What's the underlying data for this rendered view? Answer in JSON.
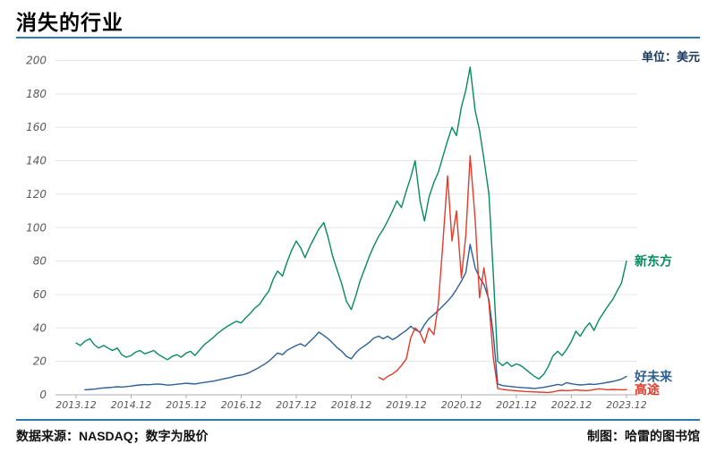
{
  "page": {
    "title": "消失的行业",
    "unit_label": "单位：美元",
    "source_note": "数据来源：NASDAQ；数字为股价",
    "credit_note": "制图：哈雷的图书馆",
    "accent_color": "#2b7cb5"
  },
  "chart_data": {
    "type": "line",
    "title": "消失的行业",
    "unit": "美元",
    "grid": true,
    "legend_position": "line-end",
    "y_axis": {
      "min": 0,
      "max": 200,
      "step": 20,
      "tick_labels": [
        "0",
        "20",
        "40",
        "60",
        "80",
        "100",
        "120",
        "140",
        "160",
        "180",
        "200"
      ]
    },
    "x_axis": {
      "ticks": [
        {
          "year": 2013.92,
          "label": "2013.12"
        },
        {
          "year": 2014.92,
          "label": "2014.12"
        },
        {
          "year": 2015.92,
          "label": "2015.12"
        },
        {
          "year": 2016.92,
          "label": "2016.12"
        },
        {
          "year": 2017.92,
          "label": "2017.12"
        },
        {
          "year": 2018.92,
          "label": "2018.12"
        },
        {
          "year": 2019.92,
          "label": "2019.12"
        },
        {
          "year": 2020.92,
          "label": "2020.12"
        },
        {
          "year": 2021.92,
          "label": "2021.12"
        },
        {
          "year": 2022.92,
          "label": "2022.12"
        },
        {
          "year": 2023.92,
          "label": "2023.12"
        }
      ]
    },
    "series": [
      {
        "id": "xindongfang",
        "name": "新东方",
        "color": "#068a60",
        "points": [
          [
            2013.92,
            31
          ],
          [
            2014,
            29.5
          ],
          [
            2014.08,
            32
          ],
          [
            2014.17,
            33.5
          ],
          [
            2014.25,
            30
          ],
          [
            2014.33,
            28
          ],
          [
            2014.42,
            29.5
          ],
          [
            2014.5,
            28
          ],
          [
            2014.58,
            26.5
          ],
          [
            2014.67,
            28
          ],
          [
            2014.75,
            24
          ],
          [
            2014.83,
            22.5
          ],
          [
            2014.92,
            23.5
          ],
          [
            2015,
            25.5
          ],
          [
            2015.08,
            26.5
          ],
          [
            2015.17,
            24.5
          ],
          [
            2015.25,
            25.5
          ],
          [
            2015.33,
            26.5
          ],
          [
            2015.42,
            24
          ],
          [
            2015.5,
            22.5
          ],
          [
            2015.58,
            21
          ],
          [
            2015.67,
            23
          ],
          [
            2015.75,
            24
          ],
          [
            2015.83,
            22.5
          ],
          [
            2015.92,
            25
          ],
          [
            2016,
            26
          ],
          [
            2016.08,
            23.5
          ],
          [
            2016.17,
            27
          ],
          [
            2016.25,
            30
          ],
          [
            2016.33,
            32
          ],
          [
            2016.42,
            34.5
          ],
          [
            2016.5,
            37
          ],
          [
            2016.58,
            39
          ],
          [
            2016.67,
            41
          ],
          [
            2016.75,
            42.5
          ],
          [
            2016.83,
            44
          ],
          [
            2016.92,
            43
          ],
          [
            2017,
            46
          ],
          [
            2017.08,
            48.5
          ],
          [
            2017.17,
            52
          ],
          [
            2017.25,
            54
          ],
          [
            2017.33,
            58
          ],
          [
            2017.42,
            62
          ],
          [
            2017.5,
            69
          ],
          [
            2017.58,
            74
          ],
          [
            2017.67,
            71
          ],
          [
            2017.75,
            79
          ],
          [
            2017.83,
            86
          ],
          [
            2017.92,
            92
          ],
          [
            2018,
            88
          ],
          [
            2018.08,
            82
          ],
          [
            2018.17,
            89
          ],
          [
            2018.25,
            94
          ],
          [
            2018.33,
            99
          ],
          [
            2018.42,
            103
          ],
          [
            2018.5,
            94
          ],
          [
            2018.58,
            83
          ],
          [
            2018.67,
            74
          ],
          [
            2018.75,
            66
          ],
          [
            2018.83,
            56
          ],
          [
            2018.92,
            51
          ],
          [
            2019,
            59
          ],
          [
            2019.08,
            68
          ],
          [
            2019.17,
            76
          ],
          [
            2019.25,
            83
          ],
          [
            2019.33,
            89
          ],
          [
            2019.42,
            95
          ],
          [
            2019.5,
            99
          ],
          [
            2019.58,
            104
          ],
          [
            2019.67,
            110
          ],
          [
            2019.75,
            116
          ],
          [
            2019.83,
            112
          ],
          [
            2019.92,
            122
          ],
          [
            2020,
            130
          ],
          [
            2020.08,
            140
          ],
          [
            2020.17,
            116
          ],
          [
            2020.25,
            104
          ],
          [
            2020.33,
            118
          ],
          [
            2020.42,
            127
          ],
          [
            2020.5,
            133
          ],
          [
            2020.58,
            142
          ],
          [
            2020.67,
            152
          ],
          [
            2020.75,
            160
          ],
          [
            2020.83,
            155
          ],
          [
            2020.92,
            172
          ],
          [
            2021,
            182
          ],
          [
            2021.08,
            196
          ],
          [
            2021.17,
            170
          ],
          [
            2021.25,
            158
          ],
          [
            2021.33,
            141
          ],
          [
            2021.42,
            120
          ],
          [
            2021.5,
            72
          ],
          [
            2021.58,
            20
          ],
          [
            2021.67,
            17.5
          ],
          [
            2021.75,
            19.5
          ],
          [
            2021.83,
            17
          ],
          [
            2021.92,
            18.5
          ],
          [
            2022,
            17.5
          ],
          [
            2022.08,
            15.5
          ],
          [
            2022.17,
            13
          ],
          [
            2022.25,
            11
          ],
          [
            2022.33,
            9.5
          ],
          [
            2022.42,
            12.5
          ],
          [
            2022.5,
            17
          ],
          [
            2022.58,
            23
          ],
          [
            2022.67,
            26
          ],
          [
            2022.75,
            23.5
          ],
          [
            2022.83,
            27
          ],
          [
            2022.92,
            32
          ],
          [
            2023,
            38
          ],
          [
            2023.08,
            35
          ],
          [
            2023.17,
            40
          ],
          [
            2023.25,
            43
          ],
          [
            2023.33,
            38.5
          ],
          [
            2023.42,
            45
          ],
          [
            2023.5,
            49
          ],
          [
            2023.58,
            53
          ],
          [
            2023.67,
            57
          ],
          [
            2023.75,
            62
          ],
          [
            2023.83,
            67
          ],
          [
            2023.92,
            80
          ]
        ]
      },
      {
        "id": "haoweilai",
        "name": "好未来",
        "color": "#2d5f96",
        "points": [
          [
            2014.08,
            3
          ],
          [
            2014.17,
            3.2
          ],
          [
            2014.25,
            3.4
          ],
          [
            2014.33,
            3.8
          ],
          [
            2014.42,
            4.1
          ],
          [
            2014.5,
            4.3
          ],
          [
            2014.58,
            4.5
          ],
          [
            2014.67,
            4.8
          ],
          [
            2014.75,
            4.6
          ],
          [
            2014.83,
            4.9
          ],
          [
            2014.92,
            5.2
          ],
          [
            2015,
            5.6
          ],
          [
            2015.08,
            5.9
          ],
          [
            2015.17,
            6.1
          ],
          [
            2015.25,
            6.0
          ],
          [
            2015.33,
            6.3
          ],
          [
            2015.42,
            6.5
          ],
          [
            2015.5,
            6.2
          ],
          [
            2015.58,
            5.8
          ],
          [
            2015.67,
            6.0
          ],
          [
            2015.75,
            6.3
          ],
          [
            2015.83,
            6.6
          ],
          [
            2015.92,
            6.9
          ],
          [
            2016,
            6.7
          ],
          [
            2016.08,
            6.5
          ],
          [
            2016.17,
            7.0
          ],
          [
            2016.25,
            7.4
          ],
          [
            2016.33,
            7.8
          ],
          [
            2016.42,
            8.2
          ],
          [
            2016.5,
            8.8
          ],
          [
            2016.58,
            9.4
          ],
          [
            2016.67,
            10.0
          ],
          [
            2016.75,
            10.6
          ],
          [
            2016.83,
            11.4
          ],
          [
            2016.92,
            11.8
          ],
          [
            2017,
            12.4
          ],
          [
            2017.08,
            13.5
          ],
          [
            2017.17,
            15
          ],
          [
            2017.25,
            16.5
          ],
          [
            2017.33,
            18
          ],
          [
            2017.42,
            20
          ],
          [
            2017.5,
            22.5
          ],
          [
            2017.58,
            25
          ],
          [
            2017.67,
            24
          ],
          [
            2017.75,
            26.5
          ],
          [
            2017.83,
            28
          ],
          [
            2017.92,
            29.5
          ],
          [
            2018,
            30.5
          ],
          [
            2018.08,
            29
          ],
          [
            2018.17,
            32
          ],
          [
            2018.25,
            34.5
          ],
          [
            2018.33,
            37.5
          ],
          [
            2018.42,
            35.5
          ],
          [
            2018.5,
            33.5
          ],
          [
            2018.58,
            31
          ],
          [
            2018.67,
            28
          ],
          [
            2018.75,
            26
          ],
          [
            2018.83,
            23
          ],
          [
            2018.92,
            21.5
          ],
          [
            2019,
            25
          ],
          [
            2019.08,
            27.5
          ],
          [
            2019.17,
            29.5
          ],
          [
            2019.25,
            31.5
          ],
          [
            2019.33,
            34
          ],
          [
            2019.42,
            35
          ],
          [
            2019.5,
            33.5
          ],
          [
            2019.58,
            35
          ],
          [
            2019.67,
            33
          ],
          [
            2019.75,
            34.5
          ],
          [
            2019.83,
            36.5
          ],
          [
            2019.92,
            38.5
          ],
          [
            2020,
            41
          ],
          [
            2020.08,
            39
          ],
          [
            2020.17,
            37.5
          ],
          [
            2020.25,
            42
          ],
          [
            2020.33,
            45.5
          ],
          [
            2020.42,
            48
          ],
          [
            2020.5,
            50.5
          ],
          [
            2020.58,
            53
          ],
          [
            2020.67,
            56
          ],
          [
            2020.75,
            59
          ],
          [
            2020.83,
            63
          ],
          [
            2020.92,
            68
          ],
          [
            2021,
            73
          ],
          [
            2021.08,
            90
          ],
          [
            2021.17,
            76
          ],
          [
            2021.25,
            70
          ],
          [
            2021.33,
            66
          ],
          [
            2021.42,
            57
          ],
          [
            2021.5,
            36
          ],
          [
            2021.58,
            6.5
          ],
          [
            2021.67,
            5.5
          ],
          [
            2021.75,
            5.2
          ],
          [
            2021.83,
            4.9
          ],
          [
            2021.92,
            4.6
          ],
          [
            2022,
            4.4
          ],
          [
            2022.08,
            4.2
          ],
          [
            2022.17,
            4.0
          ],
          [
            2022.25,
            3.8
          ],
          [
            2022.33,
            4.1
          ],
          [
            2022.42,
            4.5
          ],
          [
            2022.5,
            5.0
          ],
          [
            2022.58,
            5.5
          ],
          [
            2022.67,
            6.2
          ],
          [
            2022.75,
            5.8
          ],
          [
            2022.83,
            7.3
          ],
          [
            2022.92,
            6.6
          ],
          [
            2023,
            6.2
          ],
          [
            2023.08,
            5.9
          ],
          [
            2023.17,
            6.1
          ],
          [
            2023.25,
            6.4
          ],
          [
            2023.33,
            6.2
          ],
          [
            2023.42,
            6.6
          ],
          [
            2023.5,
            7.0
          ],
          [
            2023.58,
            7.5
          ],
          [
            2023.67,
            8.0
          ],
          [
            2023.75,
            8.6
          ],
          [
            2023.83,
            9.4
          ],
          [
            2023.92,
            11
          ]
        ]
      },
      {
        "id": "gaotu",
        "name": "高途",
        "color": "#e23a2b",
        "points": [
          [
            2019.42,
            10.5
          ],
          [
            2019.5,
            9
          ],
          [
            2019.58,
            11
          ],
          [
            2019.67,
            12.5
          ],
          [
            2019.75,
            14.5
          ],
          [
            2019.83,
            17.5
          ],
          [
            2019.92,
            21.5
          ],
          [
            2020,
            34
          ],
          [
            2020.08,
            40
          ],
          [
            2020.17,
            37
          ],
          [
            2020.25,
            31
          ],
          [
            2020.33,
            40
          ],
          [
            2020.42,
            36
          ],
          [
            2020.5,
            54
          ],
          [
            2020.58,
            89
          ],
          [
            2020.67,
            131
          ],
          [
            2020.75,
            92
          ],
          [
            2020.83,
            110
          ],
          [
            2020.92,
            70
          ],
          [
            2021,
            95
          ],
          [
            2021.08,
            143
          ],
          [
            2021.17,
            105
          ],
          [
            2021.25,
            58
          ],
          [
            2021.33,
            76
          ],
          [
            2021.42,
            55
          ],
          [
            2021.5,
            22
          ],
          [
            2021.58,
            3.8
          ],
          [
            2021.67,
            3.2
          ],
          [
            2021.75,
            2.9
          ],
          [
            2021.83,
            2.6
          ],
          [
            2021.92,
            2.4
          ],
          [
            2022,
            2.2
          ],
          [
            2022.08,
            2.0
          ],
          [
            2022.17,
            1.9
          ],
          [
            2022.25,
            1.7
          ],
          [
            2022.33,
            1.6
          ],
          [
            2022.42,
            1.5
          ],
          [
            2022.5,
            1.4
          ],
          [
            2022.58,
            1.7
          ],
          [
            2022.67,
            2.4
          ],
          [
            2022.75,
            2.7
          ],
          [
            2022.83,
            2.5
          ],
          [
            2022.92,
            2.6
          ],
          [
            2023,
            2.9
          ],
          [
            2023.08,
            2.7
          ],
          [
            2023.17,
            2.5
          ],
          [
            2023.25,
            2.6
          ],
          [
            2023.33,
            3.1
          ],
          [
            2023.42,
            3.6
          ],
          [
            2023.5,
            3.3
          ],
          [
            2023.58,
            3.0
          ],
          [
            2023.67,
            3.2
          ],
          [
            2023.75,
            3.1
          ],
          [
            2023.83,
            3.0
          ],
          [
            2023.92,
            3.1
          ]
        ]
      }
    ]
  }
}
